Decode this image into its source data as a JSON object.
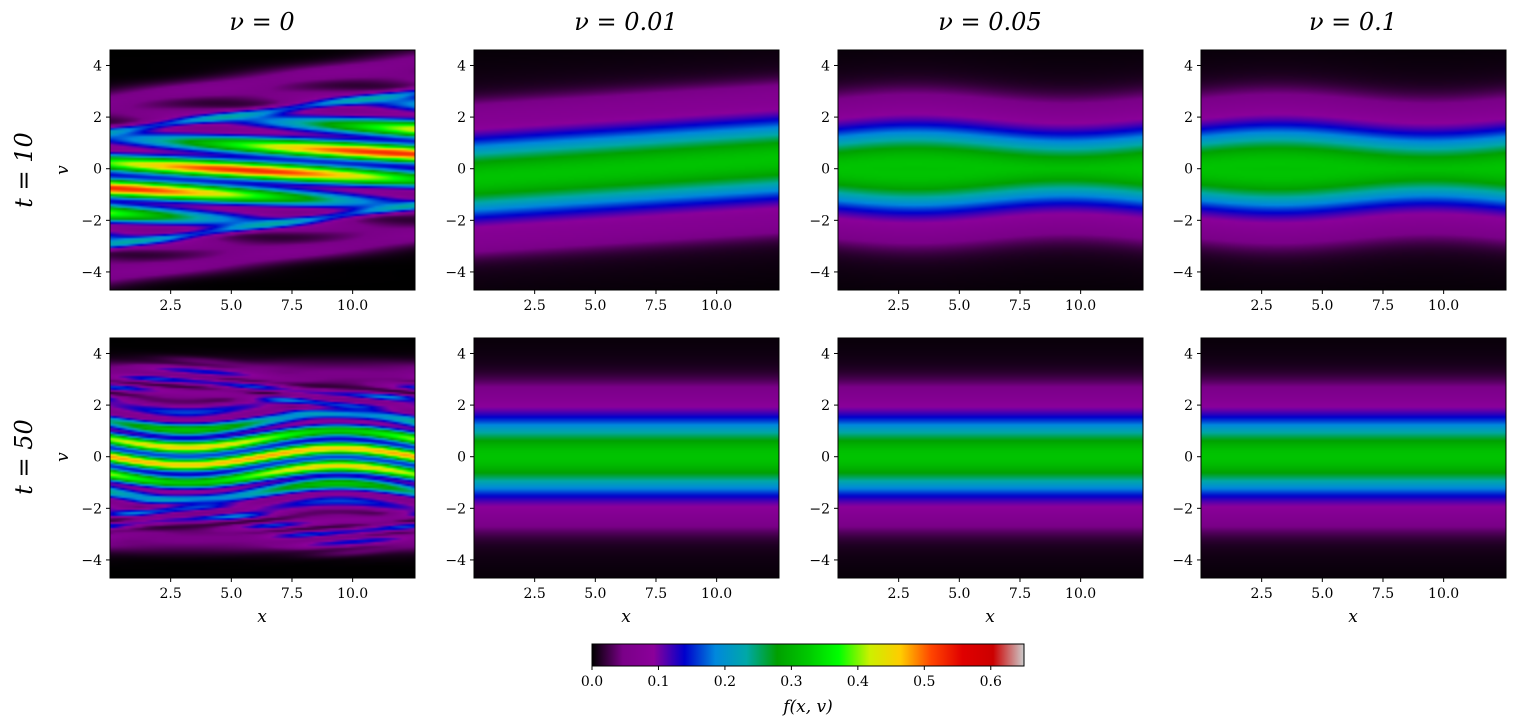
{
  "figure": {
    "column_titles": [
      "ν = 0",
      "ν = 0.01",
      "ν = 0.05",
      "ν = 0.1"
    ],
    "row_titles": [
      "t = 10",
      "t = 50"
    ],
    "xlabel": "x",
    "ylabel": "v",
    "colorbar_label": "f(x, v)"
  },
  "chart_data": [
    {
      "type": "heatmap",
      "panel": "t = 10, ν = 0",
      "xlim": [
        0.0,
        12.57
      ],
      "ylim": [
        -4.7,
        4.6
      ],
      "xticks": [
        "2.5",
        "5.0",
        "7.5",
        "10.0"
      ],
      "yticks": [
        "−4",
        "−2",
        "0",
        "2",
        "4"
      ],
      "pattern": "tilted-filaments",
      "drift": 0.12,
      "peak": 0.6
    },
    {
      "type": "heatmap",
      "panel": "t = 10, ν = 0.01",
      "xlim": [
        0.0,
        12.57
      ],
      "ylim": [
        -4.7,
        4.6
      ],
      "xticks": [
        "2.5",
        "5.0",
        "7.5",
        "10.0"
      ],
      "yticks": [
        "−4",
        "−2",
        "0",
        "2",
        "4"
      ],
      "pattern": "smooth-tilted",
      "drift": 0.06,
      "peak": 0.35
    },
    {
      "type": "heatmap",
      "panel": "t = 10, ν = 0.05",
      "xlim": [
        0.0,
        12.57
      ],
      "ylim": [
        -4.7,
        4.6
      ],
      "xticks": [
        "2.5",
        "5.0",
        "7.5",
        "10.0"
      ],
      "yticks": [
        "−4",
        "−2",
        "0",
        "2",
        "4"
      ],
      "pattern": "smooth-wavy",
      "drift": 0.0,
      "peak": 0.3
    },
    {
      "type": "heatmap",
      "panel": "t = 10, ν = 0.1",
      "xlim": [
        0.0,
        12.57
      ],
      "ylim": [
        -4.7,
        4.6
      ],
      "xticks": [
        "2.5",
        "5.0",
        "7.5",
        "10.0"
      ],
      "yticks": [
        "−4",
        "−2",
        "0",
        "2",
        "4"
      ],
      "pattern": "smooth-wavy",
      "drift": 0.0,
      "peak": 0.3
    },
    {
      "type": "heatmap",
      "panel": "t = 50, ν = 0",
      "xlim": [
        0.0,
        12.57
      ],
      "ylim": [
        -4.7,
        4.6
      ],
      "xticks": [
        "2.5",
        "5.0",
        "7.5",
        "10.0"
      ],
      "yticks": [
        "−4",
        "−2",
        "0",
        "2",
        "4"
      ],
      "pattern": "filamented-vortices",
      "drift": 0.0,
      "peak": 0.55
    },
    {
      "type": "heatmap",
      "panel": "t = 50, ν = 0.01",
      "xlim": [
        0.0,
        12.57
      ],
      "ylim": [
        -4.7,
        4.6
      ],
      "xticks": [
        "2.5",
        "5.0",
        "7.5",
        "10.0"
      ],
      "yticks": [
        "−4",
        "−2",
        "0",
        "2",
        "4"
      ],
      "pattern": "flat-bands",
      "drift": 0.0,
      "peak": 0.3
    },
    {
      "type": "heatmap",
      "panel": "t = 50, ν = 0.05",
      "xlim": [
        0.0,
        12.57
      ],
      "ylim": [
        -4.7,
        4.6
      ],
      "xticks": [
        "2.5",
        "5.0",
        "7.5",
        "10.0"
      ],
      "yticks": [
        "−4",
        "−2",
        "0",
        "2",
        "4"
      ],
      "pattern": "flat-bands",
      "drift": 0.0,
      "peak": 0.3
    },
    {
      "type": "heatmap",
      "panel": "t = 50, ν = 0.1",
      "xlim": [
        0.0,
        12.57
      ],
      "ylim": [
        -4.7,
        4.6
      ],
      "xticks": [
        "2.5",
        "5.0",
        "7.5",
        "10.0"
      ],
      "yticks": [
        "−4",
        "−2",
        "0",
        "2",
        "4"
      ],
      "pattern": "flat-bands",
      "drift": 0.0,
      "peak": 0.3
    }
  ],
  "colorbar": {
    "colormap": "nipy_spectral",
    "range": [
      0.0,
      0.65
    ],
    "ticks": [
      "0.0",
      "0.1",
      "0.2",
      "0.3",
      "0.4",
      "0.5",
      "0.6"
    ],
    "tick_values": [
      0.0,
      0.1,
      0.2,
      0.3,
      0.4,
      0.5,
      0.6
    ],
    "stops": [
      "#000000",
      "#7a0088",
      "#8b009a",
      "#0000cc",
      "#0088dd",
      "#00a8a8",
      "#00a000",
      "#00c800",
      "#00ff00",
      "#ccf000",
      "#ffcc00",
      "#ff4400",
      "#e00000",
      "#cc0000",
      "#cccccc"
    ]
  }
}
